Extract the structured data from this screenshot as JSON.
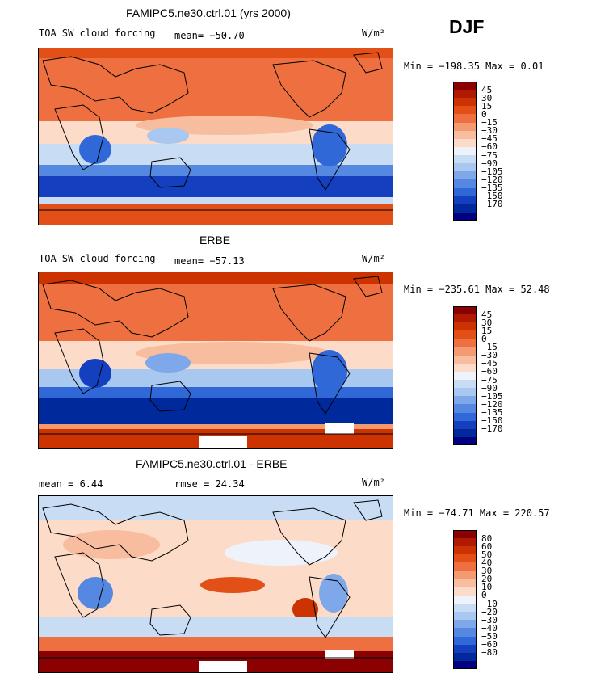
{
  "season": "DJF",
  "panels": [
    {
      "title": "FAMIPC5.ne30.ctrl.01 (yrs 2000)",
      "left_label": "TOA SW cloud forcing",
      "mean_text": "mean= −50.70",
      "units": "W/m²",
      "minmax": "Min = −198.35 Max =   0.01",
      "colorbar": {
        "colors": [
          "#8b0000",
          "#b01a00",
          "#cc3300",
          "#e25018",
          "#ee7040",
          "#f49a70",
          "#f8bc9e",
          "#fcdcc8",
          "#eef2fa",
          "#c8dcf4",
          "#a8c8f0",
          "#7ea8ea",
          "#5588e0",
          "#3068d8",
          "#1440c0",
          "#002a9c",
          "#000080"
        ],
        "labels": [
          "45",
          "30",
          "15",
          "0",
          "−15",
          "−30",
          "−45",
          "−60",
          "−75",
          "−90",
          "−105",
          "−120",
          "−135",
          "−150",
          "−170"
        ]
      }
    },
    {
      "title": "ERBE",
      "left_label": "TOA SW cloud forcing",
      "mean_text": "mean= −57.13",
      "units": "W/m²",
      "minmax": "Min = −235.61 Max =  52.48",
      "colorbar": {
        "colors": [
          "#8b0000",
          "#b01a00",
          "#cc3300",
          "#e25018",
          "#ee7040",
          "#f49a70",
          "#f8bc9e",
          "#fcdcc8",
          "#eef2fa",
          "#c8dcf4",
          "#a8c8f0",
          "#7ea8ea",
          "#5588e0",
          "#3068d8",
          "#1440c0",
          "#002a9c",
          "#000080"
        ],
        "labels": [
          "45",
          "30",
          "15",
          "0",
          "−15",
          "−30",
          "−45",
          "−60",
          "−75",
          "−90",
          "−105",
          "−120",
          "−135",
          "−150",
          "−170"
        ]
      }
    },
    {
      "title": "FAMIPC5.ne30.ctrl.01 - ERBE",
      "left_label": "mean =    6.44",
      "mean_text": "rmse =   24.34",
      "units": "W/m²",
      "minmax": "Min = −74.71 Max = 220.57",
      "colorbar": {
        "colors": [
          "#8b0000",
          "#b01a00",
          "#cc3300",
          "#e25018",
          "#ee7040",
          "#f49a70",
          "#f8bc9e",
          "#fcdcc8",
          "#eef2fa",
          "#c8dcf4",
          "#a8c8f0",
          "#7ea8ea",
          "#5588e0",
          "#3068d8",
          "#1440c0",
          "#002a9c",
          "#000080"
        ],
        "labels": [
          "80",
          "60",
          "50",
          "40",
          "30",
          "20",
          "10",
          "0",
          "−10",
          "−20",
          "−30",
          "−40",
          "−50",
          "−60",
          "−80"
        ]
      }
    }
  ],
  "chart_data": [
    {
      "type": "heatmap",
      "title": "FAMIPC5.ne30.ctrl.01 (yrs 2000)",
      "variable": "TOA SW cloud forcing",
      "units": "W/m2",
      "mean": -50.7,
      "min": -198.35,
      "max": 0.01,
      "contour_levels": [
        -170,
        -150,
        -135,
        -120,
        -105,
        -90,
        -75,
        -60,
        -45,
        -30,
        -15,
        0,
        15,
        30,
        45
      ]
    },
    {
      "type": "heatmap",
      "title": "ERBE",
      "variable": "TOA SW cloud forcing",
      "units": "W/m2",
      "mean": -57.13,
      "min": -235.61,
      "max": 52.48,
      "contour_levels": [
        -170,
        -150,
        -135,
        -120,
        -105,
        -90,
        -75,
        -60,
        -45,
        -30,
        -15,
        0,
        15,
        30,
        45
      ]
    },
    {
      "type": "heatmap",
      "title": "FAMIPC5.ne30.ctrl.01 - ERBE",
      "units": "W/m2",
      "mean": 6.44,
      "rmse": 24.34,
      "min": -74.71,
      "max": 220.57,
      "contour_levels": [
        -80,
        -60,
        -50,
        -40,
        -30,
        -20,
        -10,
        0,
        10,
        20,
        30,
        40,
        50,
        60,
        80
      ]
    }
  ]
}
